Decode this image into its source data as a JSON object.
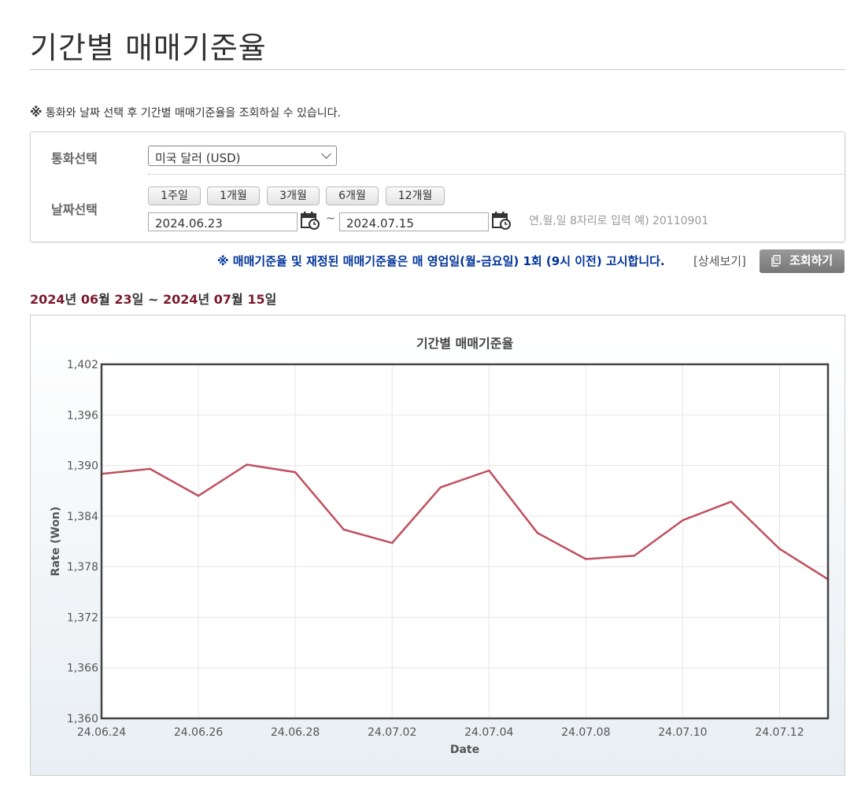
{
  "page": {
    "title": "기간별 매매기준율",
    "notice_mark": "※",
    "notice": "통화와 날짜 선택 후 기간별 매매기준율을 조회하실 수 있습니다."
  },
  "filter": {
    "currency_label": "통화선택",
    "currency_value": "미국 달러 (USD)",
    "date_label": "날짜선택",
    "period_buttons": [
      "1주일",
      "1개월",
      "3개월",
      "6개월",
      "12개월"
    ],
    "start_date": "2024.06.23",
    "end_date": "2024.07.15",
    "tilde": "~",
    "date_hint": "연,월,일 8자리로 입력 예) 20110901"
  },
  "announce": {
    "text": "※ 매매기준율 및 재정된 매매기준율은 매 영업일(월-금요일) 1회 (9시 이전) 고시합니다.",
    "detail_link": "[상세보기]",
    "search_button": "조회하기"
  },
  "range": {
    "start_year": "2024",
    "start_year_unit": "년 ",
    "start_month": "06",
    "start_month_unit": "월 ",
    "start_day": "23",
    "start_day_unit": "일 ~ ",
    "end_year": "2024",
    "end_year_unit": "년 ",
    "end_month": "07",
    "end_month_unit": "월 ",
    "end_day": "15",
    "end_day_unit": "일"
  },
  "chart_data": {
    "type": "line",
    "title": "기간별 매매기준율",
    "xlabel": "Date",
    "ylabel": "Rate (Won)",
    "ylim": [
      1360,
      1402
    ],
    "yticks": [
      1360,
      1366,
      1372,
      1378,
      1384,
      1390,
      1396,
      1402
    ],
    "ytick_labels": [
      "1,360",
      "1,366",
      "1,372",
      "1,378",
      "1,384",
      "1,390",
      "1,396",
      "1,402"
    ],
    "x": [
      "24.06.24",
      "24.06.25",
      "24.06.26",
      "24.06.27",
      "24.06.28",
      "24.07.01",
      "24.07.02",
      "24.07.03",
      "24.07.04",
      "24.07.05",
      "24.07.08",
      "24.07.09",
      "24.07.10",
      "24.07.11",
      "24.07.12",
      "24.07.15"
    ],
    "xtick_labels": [
      "24.06.24",
      "24.06.26",
      "24.06.28",
      "24.07.02",
      "24.07.04",
      "24.07.08",
      "24.07.10",
      "24.07.12"
    ],
    "series": [
      {
        "values": [
          1389.0,
          1389.6,
          1386.4,
          1390.1,
          1389.2,
          1382.4,
          1380.8,
          1387.4,
          1389.4,
          1382.0,
          1378.9,
          1379.3,
          1383.5,
          1385.7,
          1380.1,
          1376.5
        ]
      }
    ],
    "line_color": "#c0505e",
    "grid": true
  }
}
